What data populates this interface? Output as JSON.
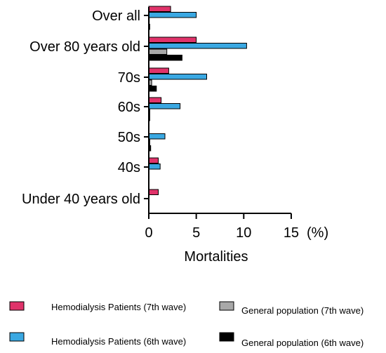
{
  "chart_data": {
    "type": "bar",
    "orientation": "horizontal",
    "categories": [
      "Over all",
      "Over 80 years old",
      "70s",
      "60s",
      "50s",
      "40s",
      "Under 40 years old"
    ],
    "series": [
      {
        "name": "Hemodialysis Patients (7th wave)",
        "color": "#e0336a",
        "values": [
          2.3,
          5.0,
          2.1,
          1.3,
          0.0,
          1.0,
          1.0
        ]
      },
      {
        "name": "Hemodialysis Patients (6th wave)",
        "color": "#3aa8e2",
        "values": [
          5.0,
          10.3,
          6.1,
          3.3,
          1.7,
          1.2,
          0.0
        ]
      },
      {
        "name": "General population (7th wave)",
        "color": "#a8a8a8",
        "values": [
          0.05,
          1.9,
          0.3,
          0.1,
          0.1,
          0.0,
          0.0
        ]
      },
      {
        "name": "General population (6th wave)",
        "color": "#000000",
        "values": [
          0.1,
          3.5,
          0.8,
          0.1,
          0.2,
          0.0,
          0.0
        ]
      }
    ],
    "xticks": [
      "0",
      "5",
      "10",
      "15"
    ],
    "xlim": [
      0,
      15
    ],
    "xunit": "(%)",
    "xlabel": "Mortalities",
    "ylabel": "",
    "title": "",
    "grid": false,
    "legend_position": "bottom"
  }
}
